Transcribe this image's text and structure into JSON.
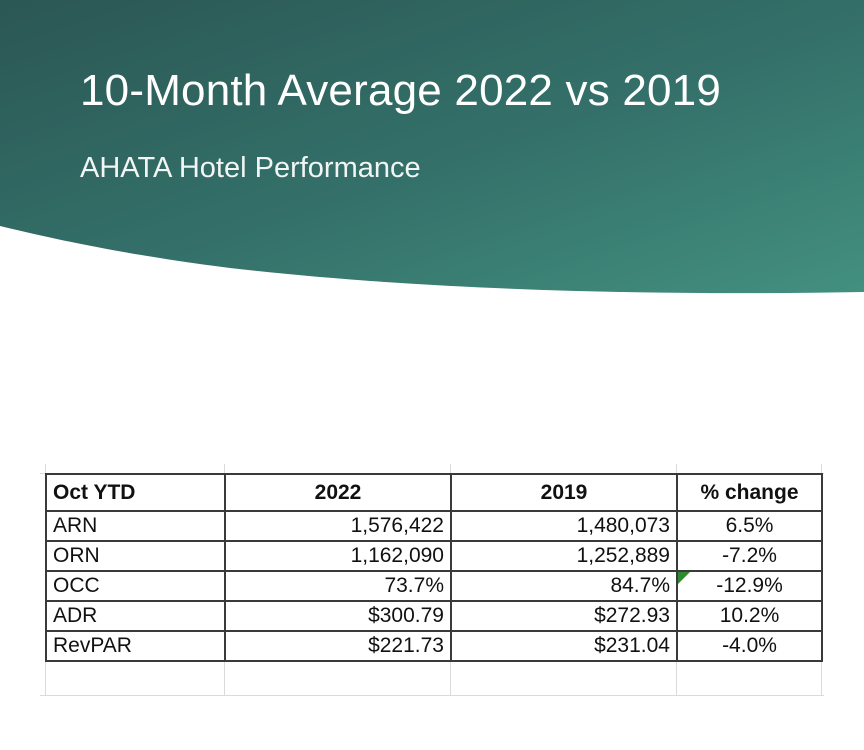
{
  "slide": {
    "title": "10-Month Average 2022 vs 2019",
    "subtitle": "AHATA Hotel Performance"
  },
  "colors": {
    "banner_dark": "#2b5754",
    "banner_light": "#3f8a7e",
    "border": "#3a3a3a",
    "comment_flag": "#2f8a2f"
  },
  "table": {
    "headers": [
      "Oct YTD",
      "2022",
      "2019",
      "% change"
    ],
    "rows": [
      {
        "label": "ARN",
        "y2022": "1,576,422",
        "y2019": "1,480,073",
        "change": "6.5%"
      },
      {
        "label": "ORN",
        "y2022": "1,162,090",
        "y2019": "1,252,889",
        "change": "-7.2%"
      },
      {
        "label": "OCC",
        "y2022": "73.7%",
        "y2019": "84.7%",
        "change": "-12.9%"
      },
      {
        "label": "ADR",
        "y2022": "$300.79",
        "y2019": "$272.93",
        "change": "10.2%"
      },
      {
        "label": "RevPAR",
        "y2022": "$221.73",
        "y2019": "$231.04",
        "change": "-4.0%"
      }
    ]
  }
}
